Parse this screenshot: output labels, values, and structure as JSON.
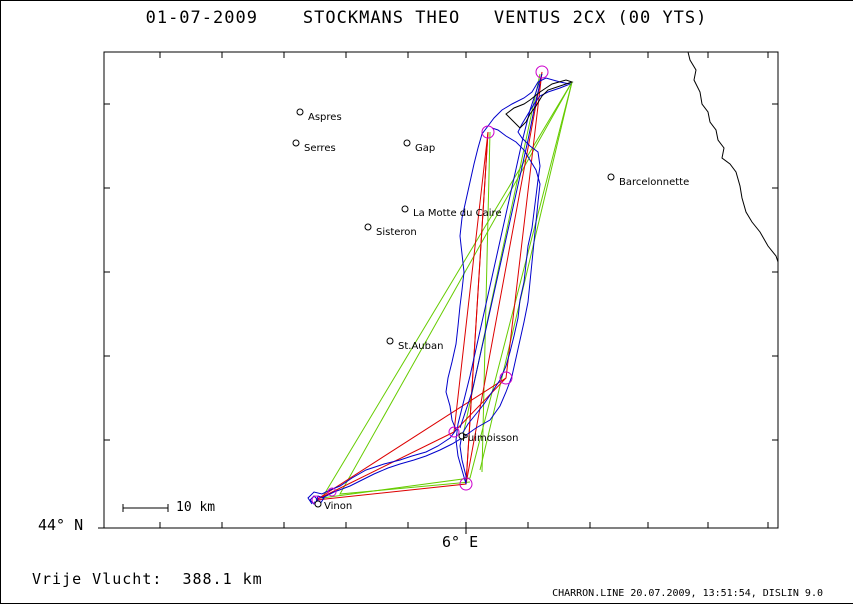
{
  "header": {
    "date": "01-07-2009",
    "pilot": "STOCKMANS THEO",
    "glider": "VENTUS 2CX (00 YTS)"
  },
  "axes": {
    "lat_label": "44° N",
    "lon_label": "6° E"
  },
  "scale_bar": {
    "label": "10 km"
  },
  "places": [
    {
      "name": "Aspres"
    },
    {
      "name": "Serres"
    },
    {
      "name": "Gap"
    },
    {
      "name": "Barcelonnette"
    },
    {
      "name": "La Motte du Caire"
    },
    {
      "name": "Sisteron"
    },
    {
      "name": "St.Auban"
    },
    {
      "name": "Puimoisson"
    },
    {
      "name": "Vinon"
    }
  ],
  "footer": {
    "distance_label": "Vrije Vlucht:",
    "distance_value": "388.1 km",
    "credits": "CHARRON.LINE 20.07.2009, 13:51:54, DISLIN 9.0"
  },
  "colors": {
    "track": "#0000cc",
    "task": "#dd0000",
    "triangle": "#66cc00",
    "turnpoint": "#cc00cc",
    "border": "#000000"
  }
}
